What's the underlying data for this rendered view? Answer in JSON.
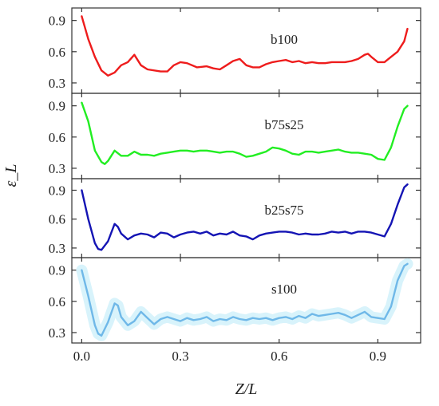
{
  "chart_data": {
    "type": "line",
    "xlabel": "Z/L",
    "ylabel": "ε_L",
    "xlim": [
      -0.03,
      1.03
    ],
    "x_ticks": [
      "0.0",
      "0.3",
      "0.6",
      "0.9"
    ],
    "x_tick_values": [
      0.0,
      0.3,
      0.6,
      0.9
    ],
    "ylim": [
      0.2,
      1.02
    ],
    "y_ticks": [
      "0.3",
      "0.6",
      "0.9"
    ],
    "y_tick_values": [
      0.3,
      0.6,
      0.9
    ],
    "grid": false,
    "legend": "none",
    "panels": [
      {
        "label": "b100",
        "color": "#ee1c1c",
        "shaded": false,
        "points": [
          [
            0.0,
            0.94
          ],
          [
            0.02,
            0.72
          ],
          [
            0.04,
            0.55
          ],
          [
            0.06,
            0.42
          ],
          [
            0.08,
            0.37
          ],
          [
            0.1,
            0.4
          ],
          [
            0.12,
            0.47
          ],
          [
            0.14,
            0.5
          ],
          [
            0.16,
            0.57
          ],
          [
            0.18,
            0.47
          ],
          [
            0.2,
            0.43
          ],
          [
            0.24,
            0.41
          ],
          [
            0.26,
            0.41
          ],
          [
            0.28,
            0.47
          ],
          [
            0.3,
            0.5
          ],
          [
            0.32,
            0.49
          ],
          [
            0.35,
            0.45
          ],
          [
            0.38,
            0.46
          ],
          [
            0.4,
            0.44
          ],
          [
            0.42,
            0.43
          ],
          [
            0.44,
            0.47
          ],
          [
            0.46,
            0.51
          ],
          [
            0.48,
            0.53
          ],
          [
            0.5,
            0.47
          ],
          [
            0.52,
            0.45
          ],
          [
            0.54,
            0.45
          ],
          [
            0.56,
            0.48
          ],
          [
            0.58,
            0.5
          ],
          [
            0.6,
            0.51
          ],
          [
            0.62,
            0.52
          ],
          [
            0.64,
            0.5
          ],
          [
            0.66,
            0.51
          ],
          [
            0.68,
            0.49
          ],
          [
            0.7,
            0.5
          ],
          [
            0.72,
            0.49
          ],
          [
            0.74,
            0.49
          ],
          [
            0.76,
            0.5
          ],
          [
            0.78,
            0.5
          ],
          [
            0.8,
            0.5
          ],
          [
            0.82,
            0.51
          ],
          [
            0.84,
            0.53
          ],
          [
            0.86,
            0.57
          ],
          [
            0.87,
            0.58
          ],
          [
            0.88,
            0.55
          ],
          [
            0.9,
            0.5
          ],
          [
            0.92,
            0.5
          ],
          [
            0.94,
            0.55
          ],
          [
            0.96,
            0.6
          ],
          [
            0.98,
            0.7
          ],
          [
            0.99,
            0.82
          ]
        ]
      },
      {
        "label": "b75s25",
        "color": "#22ee22",
        "shaded": false,
        "points": [
          [
            0.0,
            0.93
          ],
          [
            0.02,
            0.75
          ],
          [
            0.04,
            0.47
          ],
          [
            0.06,
            0.36
          ],
          [
            0.07,
            0.34
          ],
          [
            0.08,
            0.37
          ],
          [
            0.1,
            0.47
          ],
          [
            0.12,
            0.42
          ],
          [
            0.14,
            0.42
          ],
          [
            0.16,
            0.46
          ],
          [
            0.18,
            0.43
          ],
          [
            0.2,
            0.43
          ],
          [
            0.22,
            0.42
          ],
          [
            0.24,
            0.44
          ],
          [
            0.26,
            0.45
          ],
          [
            0.28,
            0.46
          ],
          [
            0.3,
            0.47
          ],
          [
            0.32,
            0.47
          ],
          [
            0.34,
            0.46
          ],
          [
            0.36,
            0.47
          ],
          [
            0.38,
            0.47
          ],
          [
            0.4,
            0.46
          ],
          [
            0.42,
            0.45
          ],
          [
            0.44,
            0.46
          ],
          [
            0.46,
            0.46
          ],
          [
            0.48,
            0.44
          ],
          [
            0.5,
            0.41
          ],
          [
            0.52,
            0.42
          ],
          [
            0.54,
            0.44
          ],
          [
            0.56,
            0.46
          ],
          [
            0.58,
            0.5
          ],
          [
            0.6,
            0.49
          ],
          [
            0.62,
            0.47
          ],
          [
            0.64,
            0.44
          ],
          [
            0.66,
            0.43
          ],
          [
            0.68,
            0.46
          ],
          [
            0.7,
            0.46
          ],
          [
            0.72,
            0.45
          ],
          [
            0.74,
            0.46
          ],
          [
            0.76,
            0.47
          ],
          [
            0.78,
            0.48
          ],
          [
            0.8,
            0.46
          ],
          [
            0.82,
            0.45
          ],
          [
            0.84,
            0.45
          ],
          [
            0.86,
            0.44
          ],
          [
            0.88,
            0.43
          ],
          [
            0.9,
            0.39
          ],
          [
            0.92,
            0.38
          ],
          [
            0.94,
            0.5
          ],
          [
            0.96,
            0.7
          ],
          [
            0.98,
            0.87
          ],
          [
            0.99,
            0.9
          ]
        ]
      },
      {
        "label": "b25s75",
        "color": "#1414b4",
        "shaded": false,
        "points": [
          [
            0.0,
            0.9
          ],
          [
            0.02,
            0.6
          ],
          [
            0.04,
            0.35
          ],
          [
            0.05,
            0.29
          ],
          [
            0.06,
            0.28
          ],
          [
            0.08,
            0.37
          ],
          [
            0.1,
            0.55
          ],
          [
            0.11,
            0.52
          ],
          [
            0.12,
            0.45
          ],
          [
            0.14,
            0.39
          ],
          [
            0.16,
            0.43
          ],
          [
            0.18,
            0.45
          ],
          [
            0.2,
            0.44
          ],
          [
            0.22,
            0.41
          ],
          [
            0.24,
            0.46
          ],
          [
            0.26,
            0.45
          ],
          [
            0.28,
            0.41
          ],
          [
            0.3,
            0.44
          ],
          [
            0.32,
            0.46
          ],
          [
            0.34,
            0.47
          ],
          [
            0.36,
            0.45
          ],
          [
            0.38,
            0.47
          ],
          [
            0.4,
            0.43
          ],
          [
            0.42,
            0.45
          ],
          [
            0.44,
            0.44
          ],
          [
            0.46,
            0.47
          ],
          [
            0.48,
            0.43
          ],
          [
            0.5,
            0.42
          ],
          [
            0.52,
            0.39
          ],
          [
            0.54,
            0.43
          ],
          [
            0.56,
            0.45
          ],
          [
            0.58,
            0.46
          ],
          [
            0.6,
            0.47
          ],
          [
            0.62,
            0.47
          ],
          [
            0.64,
            0.46
          ],
          [
            0.66,
            0.44
          ],
          [
            0.68,
            0.45
          ],
          [
            0.7,
            0.44
          ],
          [
            0.72,
            0.44
          ],
          [
            0.74,
            0.45
          ],
          [
            0.76,
            0.47
          ],
          [
            0.78,
            0.46
          ],
          [
            0.8,
            0.47
          ],
          [
            0.82,
            0.45
          ],
          [
            0.84,
            0.47
          ],
          [
            0.86,
            0.47
          ],
          [
            0.88,
            0.46
          ],
          [
            0.9,
            0.44
          ],
          [
            0.92,
            0.42
          ],
          [
            0.94,
            0.55
          ],
          [
            0.96,
            0.75
          ],
          [
            0.98,
            0.93
          ],
          [
            0.99,
            0.96
          ]
        ]
      },
      {
        "label": "s100",
        "color": "#6fb8e8",
        "shaded": true,
        "shade_color": "#d8f3fb",
        "points": [
          [
            0.0,
            0.9
          ],
          [
            0.02,
            0.65
          ],
          [
            0.04,
            0.37
          ],
          [
            0.05,
            0.29
          ],
          [
            0.06,
            0.27
          ],
          [
            0.08,
            0.4
          ],
          [
            0.1,
            0.58
          ],
          [
            0.11,
            0.56
          ],
          [
            0.12,
            0.45
          ],
          [
            0.14,
            0.37
          ],
          [
            0.16,
            0.41
          ],
          [
            0.18,
            0.5
          ],
          [
            0.2,
            0.44
          ],
          [
            0.22,
            0.38
          ],
          [
            0.24,
            0.43
          ],
          [
            0.26,
            0.45
          ],
          [
            0.28,
            0.43
          ],
          [
            0.3,
            0.41
          ],
          [
            0.32,
            0.44
          ],
          [
            0.34,
            0.42
          ],
          [
            0.36,
            0.43
          ],
          [
            0.38,
            0.45
          ],
          [
            0.4,
            0.41
          ],
          [
            0.42,
            0.43
          ],
          [
            0.44,
            0.42
          ],
          [
            0.46,
            0.45
          ],
          [
            0.48,
            0.43
          ],
          [
            0.5,
            0.42
          ],
          [
            0.52,
            0.44
          ],
          [
            0.54,
            0.43
          ],
          [
            0.56,
            0.44
          ],
          [
            0.58,
            0.42
          ],
          [
            0.6,
            0.44
          ],
          [
            0.62,
            0.45
          ],
          [
            0.64,
            0.43
          ],
          [
            0.66,
            0.46
          ],
          [
            0.68,
            0.44
          ],
          [
            0.7,
            0.48
          ],
          [
            0.72,
            0.46
          ],
          [
            0.74,
            0.47
          ],
          [
            0.76,
            0.48
          ],
          [
            0.78,
            0.49
          ],
          [
            0.8,
            0.47
          ],
          [
            0.82,
            0.44
          ],
          [
            0.84,
            0.47
          ],
          [
            0.86,
            0.5
          ],
          [
            0.88,
            0.45
          ],
          [
            0.9,
            0.44
          ],
          [
            0.92,
            0.43
          ],
          [
            0.94,
            0.55
          ],
          [
            0.96,
            0.8
          ],
          [
            0.98,
            0.94
          ],
          [
            0.99,
            0.96
          ]
        ]
      }
    ]
  }
}
